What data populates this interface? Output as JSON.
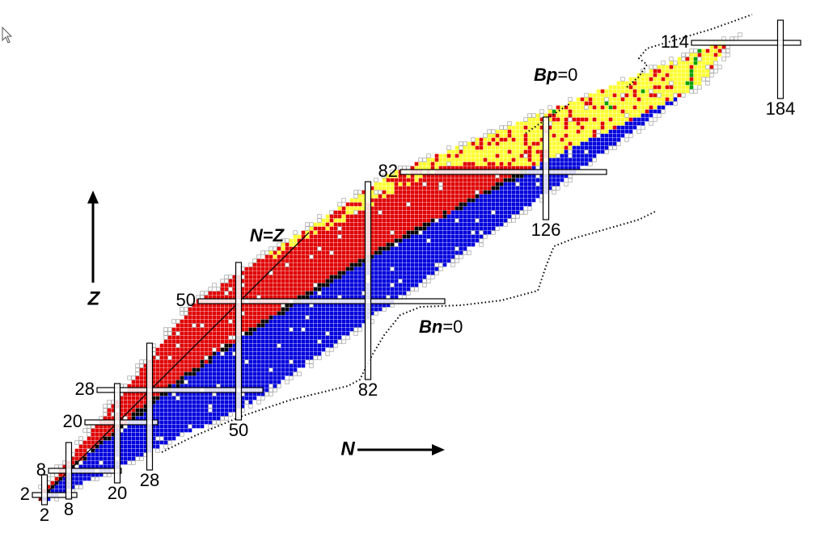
{
  "z_magic": [
    2,
    8,
    20,
    28,
    50,
    82,
    114
  ],
  "n_magic": [
    2,
    8,
    20,
    28,
    50,
    82,
    126,
    184
  ],
  "line_labels": {
    "n_equals_z": "N=Z",
    "bp": {
      "symbol": "Bp",
      "rest": "=0"
    },
    "bn": {
      "symbol": "Bn",
      "rest": "=0"
    }
  },
  "axes": {
    "z": "Z",
    "n": "N"
  }
}
